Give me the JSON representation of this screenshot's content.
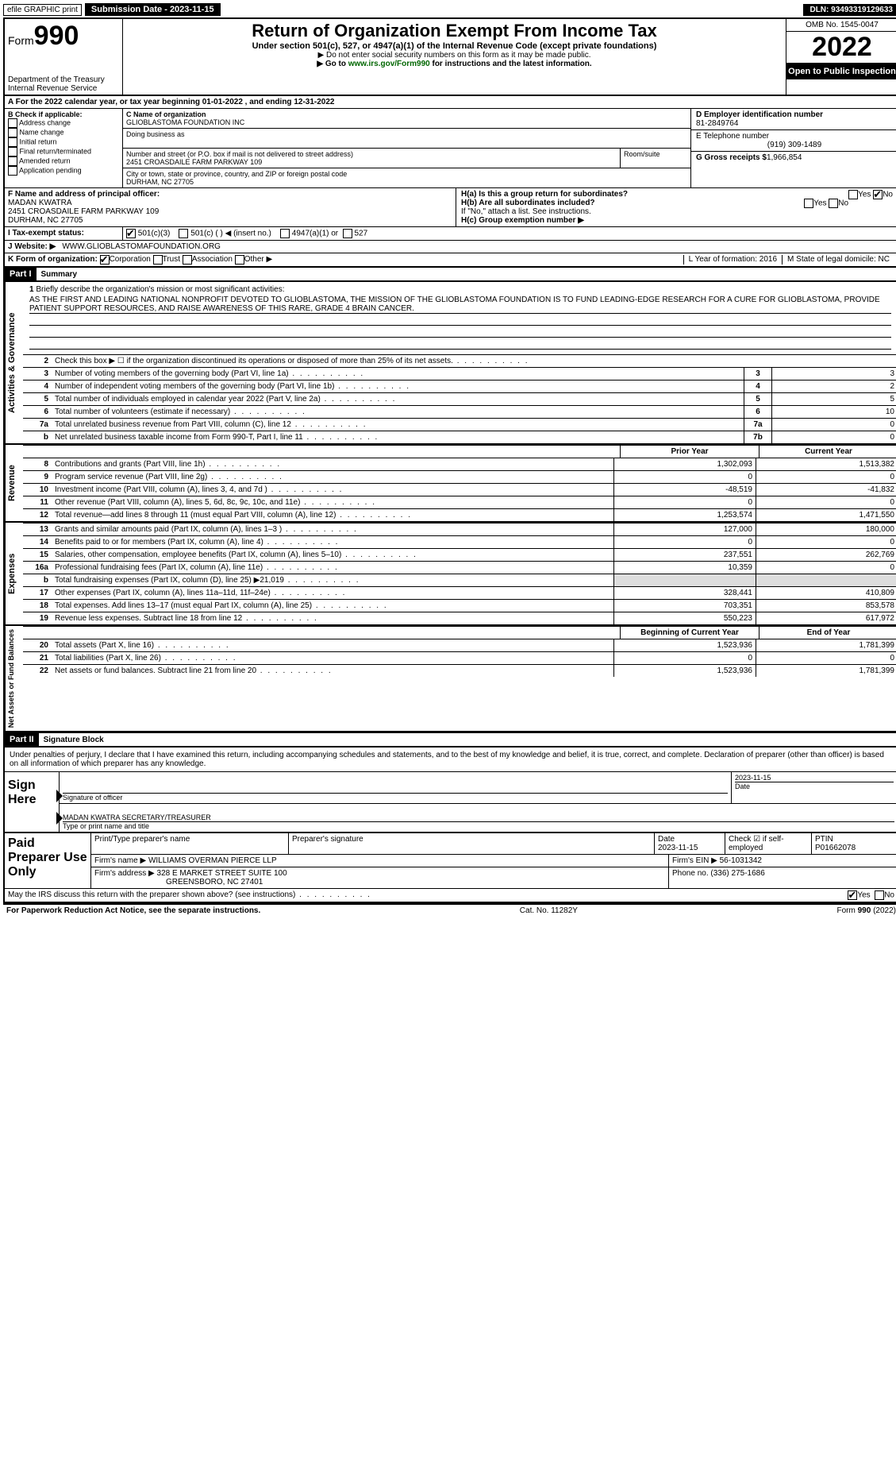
{
  "topbar": {
    "efile": "efile GRAPHIC print",
    "submission": "Submission Date - 2023-11-15",
    "dln": "DLN: 93493319129633"
  },
  "header": {
    "form_prefix": "Form",
    "form_num": "990",
    "dept": "Department of the Treasury",
    "irs": "Internal Revenue Service",
    "title": "Return of Organization Exempt From Income Tax",
    "sub": "Under section 501(c), 527, or 4947(a)(1) of the Internal Revenue Code (except private foundations)",
    "note1": "▶ Do not enter social security numbers on this form as it may be made public.",
    "note2_pre": "▶ Go to ",
    "note2_link": "www.irs.gov/Form990",
    "note2_post": " for instructions and the latest information.",
    "omb": "OMB No. 1545-0047",
    "year": "2022",
    "open": "Open to Public Inspection"
  },
  "row_a": "A For the 2022 calendar year, or tax year beginning 01-01-2022    , and ending 12-31-2022",
  "section_b": {
    "label": "B Check if applicable:",
    "opts": [
      "Address change",
      "Name change",
      "Initial return",
      "Final return/terminated",
      "Amended return",
      "Application pending"
    ]
  },
  "section_c": {
    "name_label": "C Name of organization",
    "name": "GLIOBLASTOMA FOUNDATION INC",
    "dba_label": "Doing business as",
    "addr_label": "Number and street (or P.O. box if mail is not delivered to street address)",
    "addr": "2451 CROASDAILE FARM PARKWAY 109",
    "room_label": "Room/suite",
    "city_label": "City or town, state or province, country, and ZIP or foreign postal code",
    "city": "DURHAM, NC  27705"
  },
  "section_d": {
    "label": "D Employer identification number",
    "val": "81-2849764"
  },
  "section_e": {
    "label": "E Telephone number",
    "val": "(919) 309-1489"
  },
  "section_g": {
    "label": "G Gross receipts $",
    "val": "1,966,854"
  },
  "section_f": {
    "label": "F  Name and address of principal officer:",
    "name": "MADAN KWATRA",
    "addr": "2451 CROASDAILE FARM PARKWAY 109",
    "city": "DURHAM, NC  27705"
  },
  "section_h": {
    "ha": "H(a)  Is this a group return for subordinates?",
    "hb": "H(b)  Are all subordinates included?",
    "hb_note": "If \"No,\" attach a list. See instructions.",
    "hc": "H(c)  Group exemption number ▶",
    "yes": "Yes",
    "no": "No"
  },
  "row_i": {
    "label": "I  Tax-exempt status:",
    "o1": "501(c)(3)",
    "o2": "501(c) (  ) ◀ (insert no.)",
    "o3": "4947(a)(1) or",
    "o4": "527"
  },
  "row_j": {
    "label": "J  Website: ▶",
    "val": "WWW.GLIOBLASTOMAFOUNDATION.ORG"
  },
  "row_k": {
    "label": "K Form of organization:",
    "corp": "Corporation",
    "trust": "Trust",
    "assoc": "Association",
    "other": "Other ▶",
    "l": "L Year of formation: 2016",
    "m": "M State of legal domicile: NC"
  },
  "part1": {
    "label": "Part I",
    "title": "Summary"
  },
  "mission": {
    "num": "1",
    "label": "Briefly describe the organization's mission or most significant activities:",
    "text": "AS THE FIRST AND LEADING NATIONAL NONPROFIT DEVOTED TO GLIOBLASTOMA, THE MISSION OF THE GLIOBLASTOMA FOUNDATION IS TO FUND LEADING-EDGE RESEARCH FOR A CURE FOR GLIOBLASTOMA, PROVIDE PATIENT SUPPORT RESOURCES, AND RAISE AWARENESS OF THIS RARE, GRADE 4 BRAIN CANCER."
  },
  "gov_lines": [
    {
      "n": "2",
      "t": "Check this box ▶ ☐  if the organization discontinued its operations or disposed of more than 25% of its net assets."
    },
    {
      "n": "3",
      "t": "Number of voting members of the governing body (Part VI, line 1a)",
      "box": "3",
      "v": "3"
    },
    {
      "n": "4",
      "t": "Number of independent voting members of the governing body (Part VI, line 1b)",
      "box": "4",
      "v": "2"
    },
    {
      "n": "5",
      "t": "Total number of individuals employed in calendar year 2022 (Part V, line 2a)",
      "box": "5",
      "v": "5"
    },
    {
      "n": "6",
      "t": "Total number of volunteers (estimate if necessary)",
      "box": "6",
      "v": "10"
    },
    {
      "n": "7a",
      "t": "Total unrelated business revenue from Part VIII, column (C), line 12",
      "box": "7a",
      "v": "0"
    },
    {
      "n": "b",
      "t": "Net unrelated business taxable income from Form 990-T, Part I, line 11",
      "box": "7b",
      "v": "0"
    }
  ],
  "rev_header": {
    "c1": "Prior Year",
    "c2": "Current Year"
  },
  "rev_lines": [
    {
      "n": "8",
      "t": "Contributions and grants (Part VIII, line 1h)",
      "v1": "1,302,093",
      "v2": "1,513,382"
    },
    {
      "n": "9",
      "t": "Program service revenue (Part VIII, line 2g)",
      "v1": "0",
      "v2": "0"
    },
    {
      "n": "10",
      "t": "Investment income (Part VIII, column (A), lines 3, 4, and 7d )",
      "v1": "-48,519",
      "v2": "-41,832"
    },
    {
      "n": "11",
      "t": "Other revenue (Part VIII, column (A), lines 5, 6d, 8c, 9c, 10c, and 11e)",
      "v1": "0",
      "v2": "0"
    },
    {
      "n": "12",
      "t": "Total revenue—add lines 8 through 11 (must equal Part VIII, column (A), line 12)",
      "v1": "1,253,574",
      "v2": "1,471,550"
    }
  ],
  "exp_lines": [
    {
      "n": "13",
      "t": "Grants and similar amounts paid (Part IX, column (A), lines 1–3 )",
      "v1": "127,000",
      "v2": "180,000"
    },
    {
      "n": "14",
      "t": "Benefits paid to or for members (Part IX, column (A), line 4)",
      "v1": "0",
      "v2": "0"
    },
    {
      "n": "15",
      "t": "Salaries, other compensation, employee benefits (Part IX, column (A), lines 5–10)",
      "v1": "237,551",
      "v2": "262,769"
    },
    {
      "n": "16a",
      "t": "Professional fundraising fees (Part IX, column (A), line 11e)",
      "v1": "10,359",
      "v2": "0"
    },
    {
      "n": "b",
      "t": "Total fundraising expenses (Part IX, column (D), line 25) ▶21,019",
      "v1": "",
      "v2": "",
      "shaded": true
    },
    {
      "n": "17",
      "t": "Other expenses (Part IX, column (A), lines 11a–11d, 11f–24e)",
      "v1": "328,441",
      "v2": "410,809"
    },
    {
      "n": "18",
      "t": "Total expenses. Add lines 13–17 (must equal Part IX, column (A), line 25)",
      "v1": "703,351",
      "v2": "853,578"
    },
    {
      "n": "19",
      "t": "Revenue less expenses. Subtract line 18 from line 12",
      "v1": "550,223",
      "v2": "617,972"
    }
  ],
  "na_header": {
    "c1": "Beginning of Current Year",
    "c2": "End of Year"
  },
  "na_lines": [
    {
      "n": "20",
      "t": "Total assets (Part X, line 16)",
      "v1": "1,523,936",
      "v2": "1,781,399"
    },
    {
      "n": "21",
      "t": "Total liabilities (Part X, line 26)",
      "v1": "0",
      "v2": "0"
    },
    {
      "n": "22",
      "t": "Net assets or fund balances. Subtract line 21 from line 20",
      "v1": "1,523,936",
      "v2": "1,781,399"
    }
  ],
  "side_labels": {
    "gov": "Activities & Governance",
    "rev": "Revenue",
    "exp": "Expenses",
    "na": "Net Assets or Fund Balances"
  },
  "part2": {
    "label": "Part II",
    "title": "Signature Block"
  },
  "sig": {
    "declaration": "Under penalties of perjury, I declare that I have examined this return, including accompanying schedules and statements, and to the best of my knowledge and belief, it is true, correct, and complete. Declaration of preparer (other than officer) is based on all information of which preparer has any knowledge.",
    "sign_here": "Sign Here",
    "sig_officer": "Signature of officer",
    "date": "Date",
    "date_val": "2023-11-15",
    "name_title": "MADAN KWATRA  SECRETARY/TREASURER",
    "type_name": "Type or print name and title"
  },
  "paid": {
    "label": "Paid Preparer Use Only",
    "h1": "Print/Type preparer's name",
    "h2": "Preparer's signature",
    "h3": "Date",
    "h3v": "2023-11-15",
    "h4": "Check ☑ if self-employed",
    "h5": "PTIN",
    "h5v": "P01662078",
    "firm_name_l": "Firm's name    ▶",
    "firm_name": "WILLIAMS OVERMAN PIERCE LLP",
    "firm_ein_l": "Firm's EIN ▶",
    "firm_ein": "56-1031342",
    "firm_addr_l": "Firm's address ▶",
    "firm_addr": "328 E MARKET STREET SUITE 100",
    "firm_city": "GREENSBORO, NC  27401",
    "phone_l": "Phone no.",
    "phone": "(336) 275-1686"
  },
  "footer": {
    "discuss": "May the IRS discuss this return with the preparer shown above? (see instructions)",
    "yes": "Yes",
    "no": "No",
    "pra": "For Paperwork Reduction Act Notice, see the separate instructions.",
    "cat": "Cat. No. 11282Y",
    "form": "Form 990 (2022)"
  }
}
